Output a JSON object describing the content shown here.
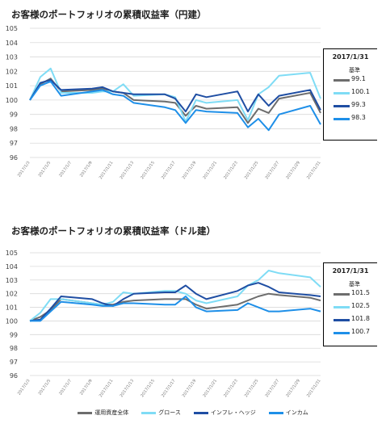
{
  "colors": {
    "all_assets": "#6d6d6d",
    "growth": "#7fdcf5",
    "inflation_hedge": "#1f4ea3",
    "income": "#1e8fe8"
  },
  "legend": [
    {
      "name": "運用資産全体",
      "color": "#6d6d6d"
    },
    {
      "name": "グロース",
      "color": "#7fdcf5"
    },
    {
      "name": "インフレ・ヘッジ",
      "color": "#1f4ea3"
    },
    {
      "name": "インカム",
      "color": "#1e8fe8"
    }
  ],
  "panels": [
    {
      "date": "2017/1/31",
      "base_label": "基準",
      "values": [
        "99.1",
        "100.1",
        "99.3",
        "98.3"
      ]
    },
    {
      "date": "2017/1/31",
      "base_label": "基準",
      "values": [
        "101.5",
        "102.5",
        "101.8",
        "100.7"
      ]
    }
  ],
  "chart_data": [
    {
      "type": "line",
      "title": "お客様のポートフォリオの累積収益率（円建）",
      "x_ticks": [
        "2017/1/3",
        "2017/1/5",
        "2017/1/7",
        "2017/1/9",
        "2017/1/11",
        "2017/1/13",
        "2017/1/15",
        "2017/1/17",
        "2017/1/19",
        "2017/1/21",
        "2017/1/23",
        "2017/1/25",
        "2017/1/27",
        "2017/1/29",
        "2017/1/31"
      ],
      "ylim": [
        96,
        105
      ],
      "y_ticks": [
        96,
        97,
        98,
        99,
        100,
        101,
        102,
        103,
        104,
        105
      ],
      "grid": true,
      "series": [
        {
          "key": "all_assets",
          "points": [
            [
              "2017/1/3",
              100
            ],
            [
              "2017/1/4",
              101.1
            ],
            [
              "2017/1/5",
              101.5
            ],
            [
              "2017/1/6",
              100.6
            ],
            [
              "2017/1/9",
              100.7
            ],
            [
              "2017/1/10",
              100.8
            ],
            [
              "2017/1/11",
              100.6
            ],
            [
              "2017/1/12",
              100.5
            ],
            [
              "2017/1/13",
              100.0
            ],
            [
              "2017/1/16",
              99.9
            ],
            [
              "2017/1/17",
              99.8
            ],
            [
              "2017/1/18",
              98.9
            ],
            [
              "2017/1/19",
              99.6
            ],
            [
              "2017/1/20",
              99.4
            ],
            [
              "2017/1/23",
              99.5
            ],
            [
              "2017/1/24",
              98.4
            ],
            [
              "2017/1/25",
              99.4
            ],
            [
              "2017/1/26",
              99.1
            ],
            [
              "2017/1/27",
              100.1
            ],
            [
              "2017/1/30",
              100.5
            ],
            [
              "2017/1/31",
              99.1
            ]
          ]
        },
        {
          "key": "growth",
          "points": [
            [
              "2017/1/3",
              100
            ],
            [
              "2017/1/4",
              101.6
            ],
            [
              "2017/1/5",
              102.2
            ],
            [
              "2017/1/6",
              100.5
            ],
            [
              "2017/1/9",
              100.5
            ],
            [
              "2017/1/10",
              100.6
            ],
            [
              "2017/1/11",
              100.6
            ],
            [
              "2017/1/12",
              101.1
            ],
            [
              "2017/1/13",
              100.3
            ],
            [
              "2017/1/16",
              100.4
            ],
            [
              "2017/1/17",
              100.2
            ],
            [
              "2017/1/18",
              98.5
            ],
            [
              "2017/1/19",
              100.0
            ],
            [
              "2017/1/20",
              99.8
            ],
            [
              "2017/1/23",
              100.0
            ],
            [
              "2017/1/24",
              98.6
            ],
            [
              "2017/1/25",
              100.4
            ],
            [
              "2017/1/26",
              100.9
            ],
            [
              "2017/1/27",
              101.7
            ],
            [
              "2017/1/30",
              101.9
            ],
            [
              "2017/1/31",
              100.1
            ]
          ]
        },
        {
          "key": "inflation_hedge",
          "points": [
            [
              "2017/1/3",
              100
            ],
            [
              "2017/1/4",
              101.2
            ],
            [
              "2017/1/5",
              101.4
            ],
            [
              "2017/1/6",
              100.7
            ],
            [
              "2017/1/9",
              100.8
            ],
            [
              "2017/1/10",
              100.9
            ],
            [
              "2017/1/11",
              100.6
            ],
            [
              "2017/1/12",
              100.5
            ],
            [
              "2017/1/13",
              100.4
            ],
            [
              "2017/1/16",
              100.4
            ],
            [
              "2017/1/17",
              100.1
            ],
            [
              "2017/1/18",
              99.2
            ],
            [
              "2017/1/19",
              100.4
            ],
            [
              "2017/1/20",
              100.2
            ],
            [
              "2017/1/23",
              100.6
            ],
            [
              "2017/1/24",
              99.2
            ],
            [
              "2017/1/25",
              100.4
            ],
            [
              "2017/1/26",
              99.6
            ],
            [
              "2017/1/27",
              100.3
            ],
            [
              "2017/1/30",
              100.7
            ],
            [
              "2017/1/31",
              99.3
            ]
          ]
        },
        {
          "key": "income",
          "points": [
            [
              "2017/1/3",
              100
            ],
            [
              "2017/1/4",
              101.0
            ],
            [
              "2017/1/5",
              101.3
            ],
            [
              "2017/1/6",
              100.3
            ],
            [
              "2017/1/9",
              100.6
            ],
            [
              "2017/1/10",
              100.7
            ],
            [
              "2017/1/11",
              100.4
            ],
            [
              "2017/1/12",
              100.3
            ],
            [
              "2017/1/13",
              99.8
            ],
            [
              "2017/1/16",
              99.5
            ],
            [
              "2017/1/17",
              99.3
            ],
            [
              "2017/1/18",
              98.4
            ],
            [
              "2017/1/19",
              99.3
            ],
            [
              "2017/1/20",
              99.2
            ],
            [
              "2017/1/23",
              99.1
            ],
            [
              "2017/1/24",
              98.1
            ],
            [
              "2017/1/25",
              98.7
            ],
            [
              "2017/1/26",
              97.9
            ],
            [
              "2017/1/27",
              99.0
            ],
            [
              "2017/1/30",
              99.6
            ],
            [
              "2017/1/31",
              98.3
            ]
          ]
        }
      ]
    },
    {
      "type": "line",
      "title": "お客様のポートフォリオの累積収益率（ドル建）",
      "x_ticks": [
        "2017/1/3",
        "2017/1/5",
        "2017/1/7",
        "2017/1/9",
        "2017/1/11",
        "2017/1/13",
        "2017/1/15",
        "2017/1/17",
        "2017/1/19",
        "2017/1/21",
        "2017/1/23",
        "2017/1/25",
        "2017/1/27",
        "2017/1/29",
        "2017/1/31"
      ],
      "ylim": [
        96,
        105
      ],
      "y_ticks": [
        96,
        97,
        98,
        99,
        100,
        101,
        102,
        103,
        104,
        105
      ],
      "grid": true,
      "series": [
        {
          "key": "all_assets",
          "points": [
            [
              "2017/1/3",
              100
            ],
            [
              "2017/1/4",
              100.3
            ],
            [
              "2017/1/5",
              100.8
            ],
            [
              "2017/1/6",
              101.6
            ],
            [
              "2017/1/9",
              101.3
            ],
            [
              "2017/1/10",
              101.2
            ],
            [
              "2017/1/11",
              101.2
            ],
            [
              "2017/1/12",
              101.4
            ],
            [
              "2017/1/13",
              101.5
            ],
            [
              "2017/1/16",
              101.6
            ],
            [
              "2017/1/17",
              101.6
            ],
            [
              "2017/1/18",
              101.6
            ],
            [
              "2017/1/19",
              101.2
            ],
            [
              "2017/1/20",
              100.9
            ],
            [
              "2017/1/23",
              101.2
            ],
            [
              "2017/1/24",
              101.5
            ],
            [
              "2017/1/25",
              101.8
            ],
            [
              "2017/1/26",
              102.0
            ],
            [
              "2017/1/27",
              101.9
            ],
            [
              "2017/1/30",
              101.7
            ],
            [
              "2017/1/31",
              101.5
            ]
          ]
        },
        {
          "key": "growth",
          "points": [
            [
              "2017/1/3",
              100
            ],
            [
              "2017/1/4",
              100.6
            ],
            [
              "2017/1/5",
              101.6
            ],
            [
              "2017/1/6",
              101.6
            ],
            [
              "2017/1/9",
              101.3
            ],
            [
              "2017/1/10",
              101.2
            ],
            [
              "2017/1/11",
              101.4
            ],
            [
              "2017/1/12",
              102.1
            ],
            [
              "2017/1/13",
              102.0
            ],
            [
              "2017/1/16",
              102.2
            ],
            [
              "2017/1/17",
              102.2
            ],
            [
              "2017/1/18",
              102.0
            ],
            [
              "2017/1/19",
              101.5
            ],
            [
              "2017/1/20",
              101.3
            ],
            [
              "2017/1/23",
              101.8
            ],
            [
              "2017/1/24",
              102.6
            ],
            [
              "2017/1/25",
              103.0
            ],
            [
              "2017/1/26",
              103.7
            ],
            [
              "2017/1/27",
              103.5
            ],
            [
              "2017/1/30",
              103.2
            ],
            [
              "2017/1/31",
              102.5
            ]
          ]
        },
        {
          "key": "inflation_hedge",
          "points": [
            [
              "2017/1/3",
              100
            ],
            [
              "2017/1/4",
              100.1
            ],
            [
              "2017/1/5",
              100.9
            ],
            [
              "2017/1/6",
              101.8
            ],
            [
              "2017/1/9",
              101.6
            ],
            [
              "2017/1/10",
              101.3
            ],
            [
              "2017/1/11",
              101.1
            ],
            [
              "2017/1/12",
              101.6
            ],
            [
              "2017/1/13",
              102.0
            ],
            [
              "2017/1/16",
              102.1
            ],
            [
              "2017/1/17",
              102.1
            ],
            [
              "2017/1/18",
              102.6
            ],
            [
              "2017/1/19",
              102.0
            ],
            [
              "2017/1/20",
              101.6
            ],
            [
              "2017/1/23",
              102.2
            ],
            [
              "2017/1/24",
              102.6
            ],
            [
              "2017/1/25",
              102.8
            ],
            [
              "2017/1/26",
              102.5
            ],
            [
              "2017/1/27",
              102.1
            ],
            [
              "2017/1/30",
              101.9
            ],
            [
              "2017/1/31",
              101.8
            ]
          ]
        },
        {
          "key": "income",
          "points": [
            [
              "2017/1/3",
              100
            ],
            [
              "2017/1/4",
              100.0
            ],
            [
              "2017/1/5",
              100.7
            ],
            [
              "2017/1/6",
              101.4
            ],
            [
              "2017/1/9",
              101.2
            ],
            [
              "2017/1/10",
              101.1
            ],
            [
              "2017/1/11",
              101.1
            ],
            [
              "2017/1/12",
              101.3
            ],
            [
              "2017/1/13",
              101.3
            ],
            [
              "2017/1/16",
              101.2
            ],
            [
              "2017/1/17",
              101.2
            ],
            [
              "2017/1/18",
              101.8
            ],
            [
              "2017/1/19",
              101.0
            ],
            [
              "2017/1/20",
              100.7
            ],
            [
              "2017/1/23",
              100.8
            ],
            [
              "2017/1/24",
              101.3
            ],
            [
              "2017/1/25",
              101.0
            ],
            [
              "2017/1/26",
              100.7
            ],
            [
              "2017/1/27",
              100.7
            ],
            [
              "2017/1/30",
              100.9
            ],
            [
              "2017/1/31",
              100.7
            ]
          ]
        }
      ]
    }
  ]
}
